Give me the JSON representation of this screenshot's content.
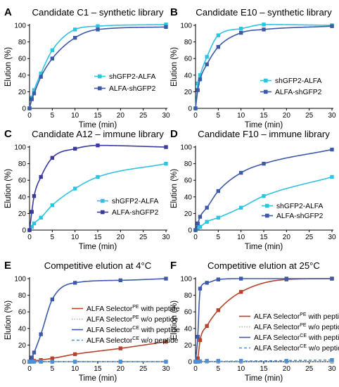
{
  "chart_data": [
    {
      "panel": "A",
      "type": "line",
      "title": "Candidate C1 – synthetic library",
      "xlabel": "Time (min)",
      "ylabel": "Elution (%)",
      "xlim": [
        0,
        30
      ],
      "ylim": [
        0,
        100
      ],
      "xticks": [
        0,
        5,
        10,
        15,
        20,
        25,
        30
      ],
      "yticks": [
        0,
        20,
        40,
        60,
        80,
        100
      ],
      "legend_position": "right",
      "series": [
        {
          "name": "shGFP2-ALFA",
          "color": "#2ec4e0",
          "marker": "square",
          "x": [
            0,
            0.5,
            1,
            2.5,
            5,
            10,
            15,
            30
          ],
          "y": [
            0,
            13,
            22,
            42,
            70,
            95,
            99,
            101
          ]
        },
        {
          "name": "ALFA-shGFP2",
          "color": "#3d5aa8",
          "marker": "square",
          "x": [
            0,
            0.5,
            1,
            2.5,
            5,
            10,
            15,
            30
          ],
          "y": [
            0,
            11,
            18,
            38,
            60,
            85,
            95,
            98
          ]
        }
      ]
    },
    {
      "panel": "B",
      "type": "line",
      "title": "Candidate E10 – synthetic library",
      "xlabel": "Time (min)",
      "ylabel": "Elution (%)",
      "xlim": [
        0,
        30
      ],
      "ylim": [
        0,
        100
      ],
      "xticks": [
        0,
        5,
        10,
        15,
        20,
        25,
        30
      ],
      "yticks": [
        0,
        20,
        40,
        60,
        80,
        100
      ],
      "legend_position": "right",
      "series": [
        {
          "name": "shGFP2-ALFA",
          "color": "#2ec4e0",
          "marker": "square",
          "x": [
            0,
            0.5,
            1,
            2.5,
            5,
            10,
            15,
            30
          ],
          "y": [
            0,
            30,
            40,
            62,
            88,
            96,
            101,
            100
          ]
        },
        {
          "name": "ALFA-shGFP2",
          "color": "#3d5aa8",
          "marker": "square",
          "x": [
            0,
            0.5,
            1,
            2.5,
            5,
            10,
            15,
            30
          ],
          "y": [
            0,
            22,
            35,
            53,
            74,
            91,
            95,
            99
          ]
        }
      ]
    },
    {
      "panel": "C",
      "type": "line",
      "title": "Candidate A12 – immune library",
      "xlabel": "Time (min)",
      "ylabel": "Elution (%)",
      "xlim": [
        0,
        30
      ],
      "ylim": [
        0,
        100
      ],
      "xticks": [
        0,
        5,
        10,
        15,
        20,
        25,
        30
      ],
      "yticks": [
        0,
        20,
        40,
        60,
        80,
        100
      ],
      "legend_position": "right",
      "series": [
        {
          "name": "shGFP2-ALFA",
          "color": "#2ec4e0",
          "marker": "square",
          "x": [
            0,
            0.5,
            1,
            2.5,
            5,
            10,
            15,
            30
          ],
          "y": [
            0,
            4,
            8,
            15,
            30,
            50,
            64,
            80
          ]
        },
        {
          "name": "ALFA-shGFP2",
          "color": "#3a3a9e",
          "marker": "square",
          "x": [
            0,
            0.5,
            1,
            2.5,
            5,
            10,
            15,
            30
          ],
          "y": [
            0,
            22,
            41,
            64,
            87,
            98,
            102,
            100
          ]
        }
      ]
    },
    {
      "panel": "D",
      "type": "line",
      "title": "Candidate F10 – immune library",
      "xlabel": "Time (min)",
      "ylabel": "Elution (%)",
      "xlim": [
        0,
        30
      ],
      "ylim": [
        0,
        100
      ],
      "xticks": [
        0,
        5,
        10,
        15,
        20,
        25,
        30
      ],
      "yticks": [
        0,
        20,
        40,
        60,
        80,
        100
      ],
      "legend_position": "right",
      "series": [
        {
          "name": "shGFP2-ALFA",
          "color": "#2ec4e0",
          "marker": "square",
          "x": [
            0,
            0.5,
            1,
            2.5,
            5,
            10,
            15,
            30
          ],
          "y": [
            0,
            3,
            4,
            10,
            15,
            27,
            41,
            64
          ]
        },
        {
          "name": "ALFA-shGFP2",
          "color": "#3d5aa8",
          "marker": "square",
          "x": [
            0,
            0.5,
            1,
            2.5,
            5,
            10,
            15,
            30
          ],
          "y": [
            0,
            8,
            16,
            27,
            47,
            69,
            80,
            97
          ]
        }
      ]
    },
    {
      "panel": "E",
      "type": "line",
      "title": "Competitive elution at 4°C",
      "xlabel": "Time (min)",
      "ylabel": "Elution (%)",
      "xlim": [
        0,
        30
      ],
      "ylim": [
        0,
        100
      ],
      "xticks": [
        0,
        5,
        10,
        15,
        20,
        25,
        30
      ],
      "yticks": [
        0,
        20,
        40,
        60,
        80,
        100
      ],
      "legend_position": "right",
      "series": [
        {
          "name": "ALFA Selector PE with peptide",
          "color": "#b5432b",
          "marker": "square",
          "x": [
            0,
            0.5,
            1,
            2.5,
            5,
            10,
            20,
            30
          ],
          "y": [
            0,
            0.5,
            1,
            2,
            4,
            9,
            16,
            24
          ]
        },
        {
          "name": "ALFA Selector PE w/o peptide",
          "color": "#b0b0b0",
          "marker": "square",
          "x": [
            0,
            0.5,
            1,
            2.5,
            5,
            10,
            20,
            30
          ],
          "y": [
            0,
            0,
            0,
            0,
            0,
            0,
            0,
            0
          ]
        },
        {
          "name": "ALFA Selector CE with peptide",
          "color": "#3d5aa8",
          "marker": "square",
          "x": [
            0,
            0.5,
            1,
            2.5,
            5,
            10,
            20,
            30
          ],
          "y": [
            0,
            5,
            11,
            33,
            75,
            95,
            98,
            100
          ]
        },
        {
          "name": "ALFA Selector CE w/o peptide",
          "color": "#4a90d9",
          "marker": "square",
          "x": [
            0,
            0.5,
            1,
            2.5,
            5,
            10,
            20,
            30
          ],
          "y": [
            0,
            0,
            0,
            0,
            0,
            0,
            0,
            0
          ]
        }
      ]
    },
    {
      "panel": "F",
      "type": "line",
      "title": "Competitive elution at 25°C",
      "xlabel": "Time (min)",
      "ylabel": "Elution (%)",
      "xlim": [
        0,
        30
      ],
      "ylim": [
        0,
        100
      ],
      "xticks": [
        0,
        5,
        10,
        15,
        20,
        25,
        30
      ],
      "yticks": [
        0,
        20,
        40,
        60,
        80,
        100
      ],
      "legend_position": "right",
      "series": [
        {
          "name": "ALFA Selector PE with peptide",
          "color": "#b5432b",
          "marker": "square",
          "x": [
            0,
            0.5,
            1,
            2.5,
            5,
            10,
            20,
            30
          ],
          "y": [
            0,
            4,
            26,
            43,
            62,
            84,
            99,
            100
          ]
        },
        {
          "name": "ALFA Selector PE w/o peptide",
          "color": "#b0b0b0",
          "marker": "square",
          "x": [
            0,
            0.5,
            1,
            2.5,
            5,
            10,
            20,
            30
          ],
          "y": [
            0,
            0,
            0,
            0,
            0,
            0,
            0,
            0
          ]
        },
        {
          "name": "ALFA Selector CE with peptide",
          "color": "#3d5aa8",
          "marker": "square",
          "x": [
            0,
            0.5,
            1,
            2.5,
            5,
            10,
            20,
            30
          ],
          "y": [
            0,
            30,
            88,
            95,
            99,
            100,
            100,
            100
          ]
        },
        {
          "name": "ALFA Selector CE w/o peptide",
          "color": "#4a90d9",
          "marker": "square",
          "x": [
            0,
            0.5,
            1,
            2.5,
            5,
            10,
            20,
            30
          ],
          "y": [
            0,
            0,
            0.5,
            1,
            1,
            1,
            1,
            2
          ]
        }
      ]
    }
  ]
}
